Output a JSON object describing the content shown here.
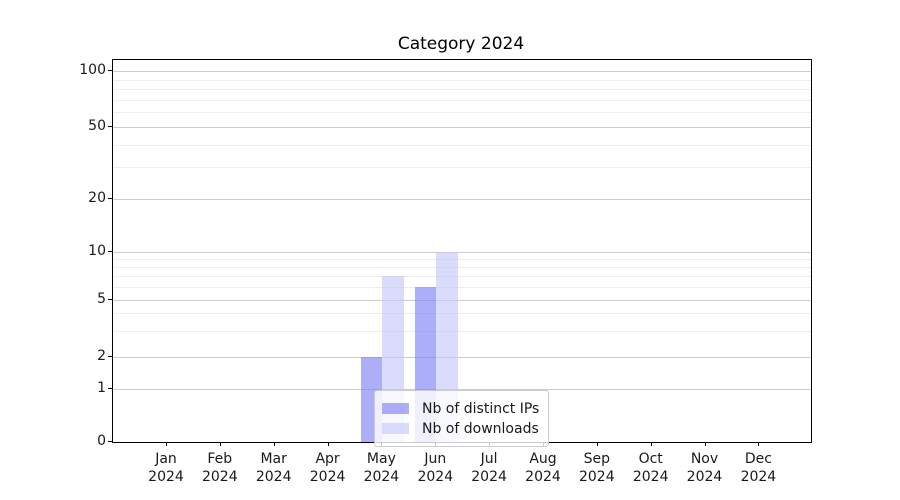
{
  "title": "Category 2024",
  "chart_data": {
    "type": "bar",
    "title": "Category 2024",
    "categories": [
      "Jan 2024",
      "Feb 2024",
      "Mar 2024",
      "Apr 2024",
      "May 2024",
      "Jun 2024",
      "Jul 2024",
      "Aug 2024",
      "Sep 2024",
      "Oct 2024",
      "Nov 2024",
      "Dec 2024"
    ],
    "series": [
      {
        "name": "Nb of distinct IPs",
        "color": "#7a7cf3",
        "alpha": 0.62,
        "values": [
          0,
          0,
          0,
          0,
          2,
          6,
          0,
          0,
          0,
          0,
          0,
          0
        ]
      },
      {
        "name": "Nb of downloads",
        "color": "#c5c7fa",
        "alpha": 0.62,
        "values": [
          0,
          0,
          0,
          0,
          7,
          10,
          0,
          0,
          0,
          0,
          0,
          0
        ]
      }
    ],
    "yscale": "log-like (0 baseline, log above 1)",
    "ylim": [
      0,
      110
    ],
    "yticks": [
      0,
      1,
      2,
      5,
      10,
      20,
      50,
      100
    ],
    "yticks_minor": [
      3,
      4,
      6,
      7,
      8,
      9,
      30,
      40,
      60,
      70,
      80,
      90
    ],
    "grid": "horizontal, major and minor",
    "legend_position": "lower center, inside plot"
  },
  "legend": {
    "items": [
      {
        "label": "Nb of distinct IPs",
        "color": "#7a7cf3"
      },
      {
        "label": "Nb of downloads",
        "color": "#c5c7fa"
      }
    ]
  },
  "colors": {
    "grid_major": "#cccccc",
    "grid_minor": "#ececec",
    "spine": "#000000",
    "text": "#1a1a1a",
    "legend_border": "#cccccc"
  }
}
